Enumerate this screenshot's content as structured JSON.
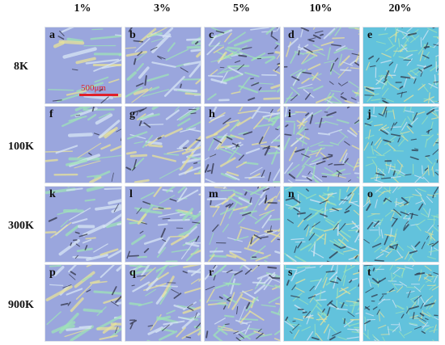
{
  "columns": [
    "1%",
    "3%",
    "5%",
    "10%",
    "20%"
  ],
  "rows": [
    "8K",
    "100K",
    "300K",
    "900K"
  ],
  "panels": [
    [
      "a",
      "b",
      "c",
      "d",
      "e"
    ],
    [
      "f",
      "g",
      "h",
      "i",
      "j"
    ],
    [
      "k",
      "l",
      "m",
      "n",
      "o"
    ],
    [
      "p",
      "q",
      "r",
      "s",
      "t"
    ]
  ],
  "scale_bar": {
    "label": "500μm",
    "color": "#e0202a"
  },
  "colors": {
    "background_lavender": "#9aa6dd",
    "background_cyan": "#62c2dc",
    "crystal_green": "#9fe3b8",
    "crystal_yellow": "#e8e39a",
    "defect_dark": "#2b2d3f"
  }
}
